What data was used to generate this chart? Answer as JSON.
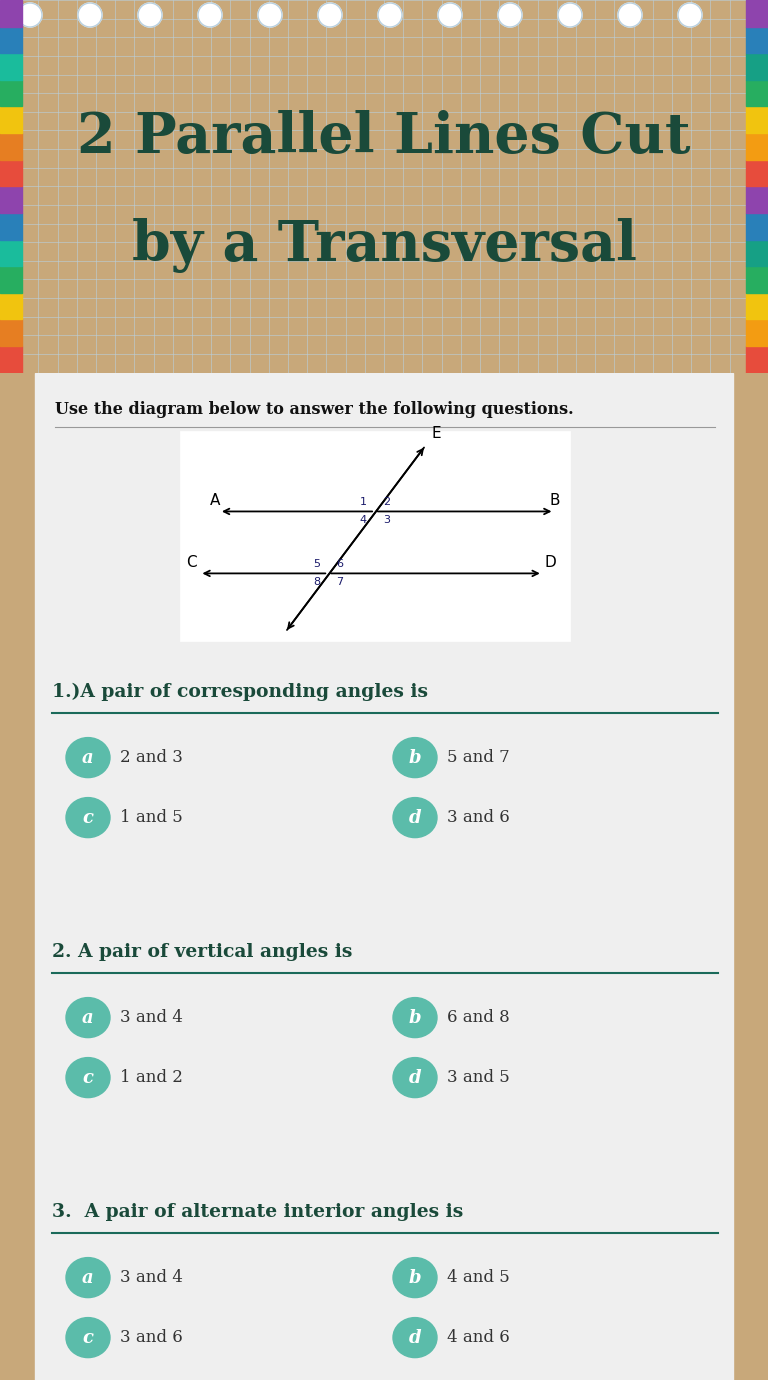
{
  "title_line1": "2 Parallel Lines Cut",
  "title_line2": "by a Transversal",
  "title_color": "#1a4a3a",
  "header_bg": "#eef4f8",
  "header_grid_color": "#b8d0e0",
  "body_bg": "#c8a87a",
  "content_bg": "#efefef",
  "teal_color": "#5bbcaa",
  "instruction": "Use the diagram below to answer the following questions.",
  "questions": [
    {
      "num": "1.)",
      "text": "A pair of corresponding angles is",
      "options": [
        [
          "a",
          "2 and 3"
        ],
        [
          "b",
          "5 and 7"
        ],
        [
          "c",
          "1 and 5"
        ],
        [
          "d",
          "3 and 6"
        ]
      ]
    },
    {
      "num": "2.",
      "text": " A pair of vertical angles is",
      "options": [
        [
          "a",
          "3 and 4"
        ],
        [
          "b",
          "6 and 8"
        ],
        [
          "c",
          "1 and 2"
        ],
        [
          "d",
          "3 and 5"
        ]
      ]
    },
    {
      "num": "3.",
      "text": "  A pair of alternate interior angles is",
      "options": [
        [
          "a",
          "3 and 4"
        ],
        [
          "b",
          "4 and 5"
        ],
        [
          "c",
          "3 and 6"
        ],
        [
          "d",
          "4 and 6"
        ]
      ]
    }
  ],
  "divider_color": "#1a6a5a",
  "angle_num_color": "#1a1a6a",
  "tab_colors_left": [
    "#e74c3c",
    "#e67e22",
    "#f1c40f",
    "#27ae60",
    "#1abc9c",
    "#2980b9",
    "#8e44ad",
    "#e74c3c",
    "#e67e22",
    "#f1c40f",
    "#27ae60",
    "#1abc9c",
    "#2980b9",
    "#8e44ad"
  ],
  "tab_colors_right": [
    "#e74c3c",
    "#f39c12",
    "#f1c40f",
    "#27ae60",
    "#16a085",
    "#2980b9",
    "#8e44ad",
    "#e74c3c",
    "#f39c12",
    "#f1c40f",
    "#27ae60",
    "#16a085",
    "#2980b9",
    "#8e44ad"
  ]
}
